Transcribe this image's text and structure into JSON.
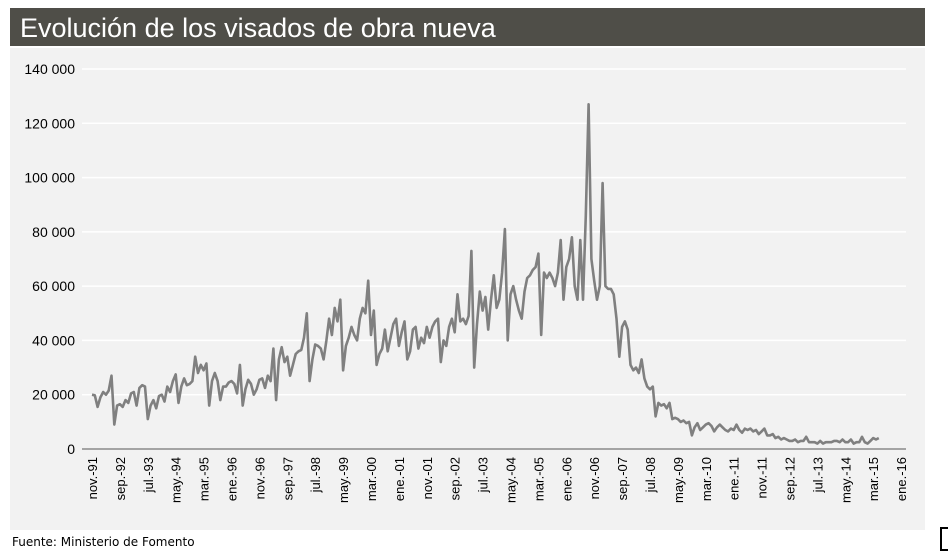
{
  "chart_data": {
    "type": "line",
    "title": "Evolución de los visados de obra nueva",
    "source": "Fuente: Ministerio de Fomento",
    "frequency": "monthly",
    "start": "nov-91",
    "ylim": [
      0,
      140000
    ],
    "yticks": [
      0,
      20000,
      40000,
      60000,
      80000,
      100000,
      120000,
      140000
    ],
    "ytick_labels": [
      "0",
      "20 000",
      "40 000",
      "60 000",
      "80 000",
      "100 000",
      "120 000",
      "140 000"
    ],
    "xtick_labels": [
      "nov.-91",
      "sep.-92",
      "jul.-93",
      "may.-94",
      "mar.-95",
      "ene.-96",
      "nov.-96",
      "sep.-97",
      "jul.-98",
      "may.-99",
      "mar.-00",
      "ene.-01",
      "nov.-01",
      "sep.-02",
      "jul.-03",
      "may.-04",
      "mar.-05",
      "ene.-06",
      "nov.-06",
      "sep.-07",
      "jul.-08",
      "may.-09",
      "mar.-10",
      "ene.-11",
      "nov.-11",
      "sep.-12",
      "jul.-13",
      "may.-14",
      "mar.-15",
      "ene.-16"
    ],
    "xtick_interval_months": 10,
    "grid": true,
    "series_color": "#808080",
    "values": [
      20000,
      19800,
      15500,
      19000,
      21000,
      20000,
      21500,
      27000,
      9000,
      16000,
      16500,
      15500,
      18000,
      17000,
      20500,
      21000,
      16000,
      22500,
      23500,
      23000,
      11000,
      16000,
      18000,
      15000,
      19500,
      20000,
      17500,
      23000,
      21000,
      25000,
      27500,
      17000,
      23000,
      26000,
      23500,
      24000,
      25000,
      34000,
      28000,
      31000,
      29000,
      31500,
      16000,
      25000,
      28000,
      25000,
      18000,
      23000,
      23000,
      24500,
      25000,
      24000,
      20500,
      31000,
      16000,
      22000,
      25500,
      24000,
      20000,
      22000,
      25500,
      26000,
      22500,
      27000,
      25000,
      37000,
      18000,
      33000,
      37500,
      32000,
      34000,
      27000,
      31000,
      35000,
      36000,
      36500,
      41000,
      50000,
      25000,
      33000,
      38500,
      38000,
      37000,
      33000,
      40000,
      48000,
      42000,
      52000,
      47000,
      55000,
      29000,
      38000,
      41000,
      45000,
      42000,
      40000,
      48000,
      52000,
      50000,
      62000,
      42000,
      51000,
      31000,
      35000,
      37000,
      44000,
      36000,
      41000,
      46000,
      48000,
      38000,
      43000,
      47000,
      33000,
      36000,
      44000,
      45000,
      37000,
      41000,
      39000,
      45000,
      41000,
      45000,
      47000,
      48000,
      32000,
      40000,
      38000,
      45000,
      48000,
      43000,
      57000,
      47000,
      48000,
      46000,
      49000,
      73000,
      30000,
      46000,
      58000,
      51000,
      56000,
      44000,
      55000,
      64000,
      52000,
      55000,
      65000,
      81000,
      40000,
      57000,
      60000,
      55000,
      51000,
      48000,
      58000,
      63000,
      64000,
      66000,
      67000,
      72000,
      42000,
      65000,
      63000,
      65000,
      63000,
      60000,
      65000,
      77000,
      55000,
      67000,
      70000,
      78000,
      60000,
      55000,
      77000,
      55000,
      86000,
      127000,
      70000,
      62000,
      55000,
      60000,
      98000,
      60000,
      59000,
      59000,
      57000,
      48000,
      34000,
      45000,
      47000,
      44000,
      31000,
      29000,
      30000,
      28000,
      33000,
      26000,
      23000,
      22000,
      23000,
      12000,
      17000,
      16000,
      16500,
      15000,
      17000,
      11000,
      11500,
      11000,
      10000,
      10500,
      9500,
      10000,
      5000,
      8000,
      9500,
      7000,
      8000,
      9000,
      9500,
      8500,
      6500,
      8000,
      9000,
      8000,
      7000,
      6500,
      7500,
      7000,
      9000,
      7000,
      6000,
      7500,
      7000,
      7500,
      6500,
      7000,
      5500,
      6500,
      7500,
      5000,
      5000,
      5500,
      4000,
      4500,
      3500,
      4000,
      3500,
      3000,
      3000,
      3500,
      2500,
      3000,
      3000,
      4500,
      2500,
      2500,
      2500,
      2000,
      3000,
      2000,
      2500,
      2500,
      2500,
      3000,
      3000,
      2500,
      3500,
      2500,
      2500,
      3500,
      2000,
      2500,
      2500,
      4500,
      2500,
      2000,
      3000,
      4000,
      3500,
      4000
    ]
  }
}
